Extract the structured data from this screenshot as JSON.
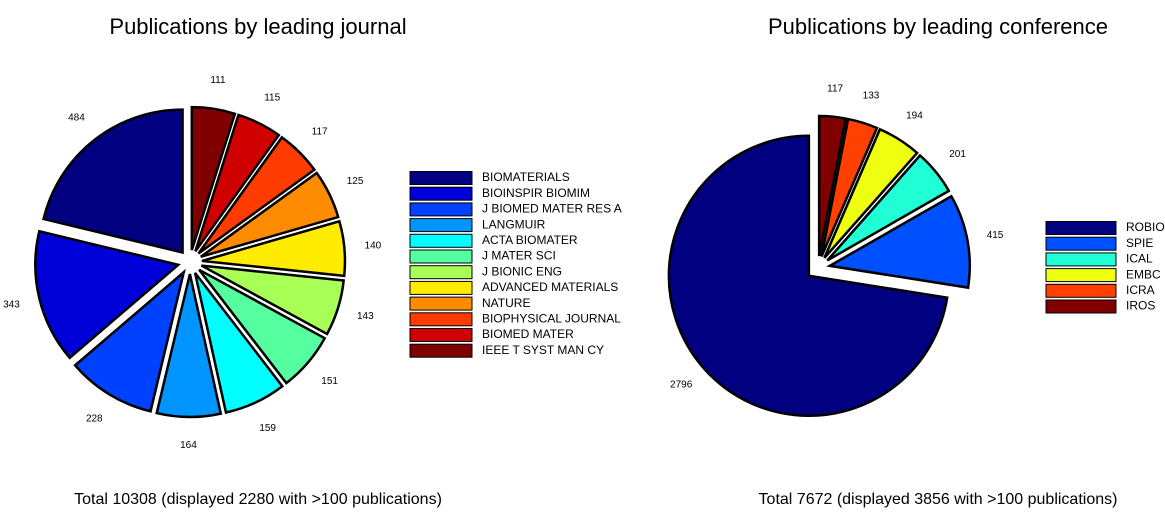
{
  "chart_data": [
    {
      "type": "pie",
      "title": "Publications by leading journal",
      "subtitle": "Total 10308 (displayed 2280 with >100 publications)",
      "categories": [
        "BIOMATERIALS",
        "BIOINSPIR BIOMIM",
        "J BIOMED MATER RES A",
        "LANGMUIR",
        "ACTA BIOMATER",
        "J MATER SCI",
        "J BIONIC ENG",
        "ADVANCED MATERIALS",
        "NATURE",
        "BIOPHYSICAL JOURNAL",
        "BIOMED MATER",
        "IEEE T SYST MAN CY"
      ],
      "values": [
        484,
        343,
        228,
        164,
        159,
        151,
        143,
        140,
        125,
        117,
        115,
        111
      ],
      "colors": [
        "#000080",
        "#0000d8",
        "#0040ff",
        "#0094ff",
        "#00ffff",
        "#55ffa0",
        "#a8ff55",
        "#ffec00",
        "#ff8c00",
        "#ff3c00",
        "#d00000",
        "#800000"
      ]
    },
    {
      "type": "pie",
      "title": "Publications by leading conference",
      "subtitle": "Total 7672 (displayed 3856 with >100 publications)",
      "categories": [
        "ROBIO",
        "SPIE",
        "ICAL",
        "EMBC",
        "ICRA",
        "IROS"
      ],
      "values": [
        2796,
        415,
        201,
        194,
        133,
        117
      ],
      "colors": [
        "#000080",
        "#0050ff",
        "#20ffd5",
        "#efff10",
        "#ff4000",
        "#800000"
      ]
    }
  ]
}
